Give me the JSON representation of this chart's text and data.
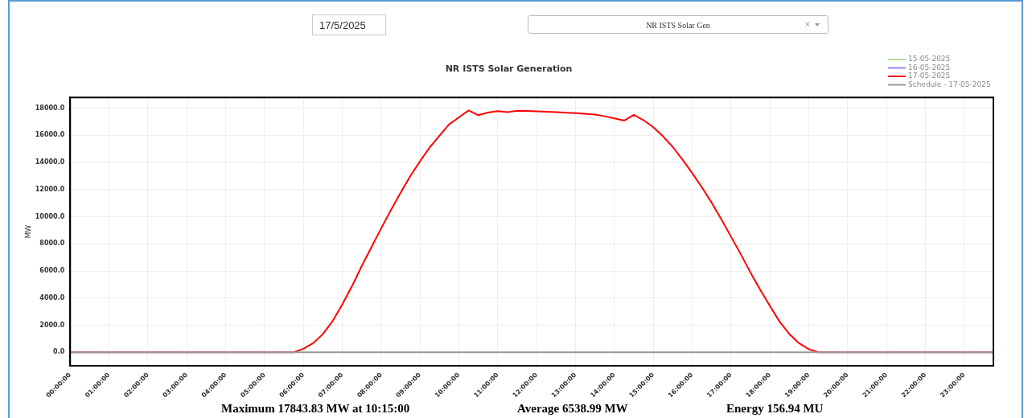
{
  "chart_data": {
    "type": "line",
    "title": "NR ISTS Solar Generation",
    "ylabel": "MW",
    "annotations": [
      "17/5/2025",
      "NR ISTS Solar Gen",
      "Maximum 17843.83 MW at 10:15:00",
      "Average 6538.99 MW",
      "Energy 156.94 MU"
    ],
    "xlim": [
      0,
      23.75
    ],
    "ylim": [
      -1000,
      18800
    ],
    "xticks": [
      {
        "value": 0,
        "label": "00:00:00"
      },
      {
        "value": 1,
        "label": "01:00:00"
      },
      {
        "value": 2,
        "label": "02:00:00"
      },
      {
        "value": 3,
        "label": "03:00:00"
      },
      {
        "value": 4,
        "label": "04:00:00"
      },
      {
        "value": 5,
        "label": "05:00:00"
      },
      {
        "value": 6,
        "label": "06:00:00"
      },
      {
        "value": 7,
        "label": "07:00:00"
      },
      {
        "value": 8,
        "label": "08:00:00"
      },
      {
        "value": 9,
        "label": "09:00:00"
      },
      {
        "value": 10,
        "label": "10:00:00"
      },
      {
        "value": 11,
        "label": "11:00:00"
      },
      {
        "value": 12,
        "label": "12:00:00"
      },
      {
        "value": 13,
        "label": "13:00:00"
      },
      {
        "value": 14,
        "label": "14:00:00"
      },
      {
        "value": 15,
        "label": "15:00:00"
      },
      {
        "value": 16,
        "label": "16:00:00"
      },
      {
        "value": 17,
        "label": "17:00:00"
      },
      {
        "value": 18,
        "label": "18:00:00"
      },
      {
        "value": 19,
        "label": "19:00:00"
      },
      {
        "value": 20,
        "label": "20:00:00"
      },
      {
        "value": 21,
        "label": "21:00:00"
      },
      {
        "value": 22,
        "label": "22:00:00"
      },
      {
        "value": 23,
        "label": "23:00:00"
      }
    ],
    "yticks": [
      {
        "value": 0,
        "label": "0.0"
      },
      {
        "value": 2000,
        "label": "2000.0"
      },
      {
        "value": 4000,
        "label": "4000.0"
      },
      {
        "value": 6000,
        "label": "6000.0"
      },
      {
        "value": 8000,
        "label": "8000.0"
      },
      {
        "value": 10000,
        "label": "10000.0"
      },
      {
        "value": 12000,
        "label": "12000.0"
      },
      {
        "value": 14000,
        "label": "14000.0"
      },
      {
        "value": 16000,
        "label": "16000.0"
      },
      {
        "value": 18000,
        "label": "18000.0"
      }
    ],
    "grid": true,
    "legend": "top right",
    "marker": "none",
    "line_style": "solid",
    "series": [
      {
        "name": "15-05-2025",
        "color": "#b5d99c"
      },
      {
        "name": "16-05-2025",
        "color": "#8888ff"
      },
      {
        "name": "17-05-2025",
        "color": "#ff0000",
        "x": [
          0,
          5.75,
          6,
          6.25,
          6.5,
          6.75,
          7,
          7.25,
          7.5,
          7.75,
          8,
          8.25,
          8.5,
          8.75,
          9,
          9.25,
          9.5,
          9.75,
          10,
          10.25,
          10.5,
          10.75,
          11,
          11.25,
          11.5,
          11.75,
          12,
          12.5,
          13,
          13.5,
          13.75,
          14,
          14.25,
          14.5,
          14.75,
          15,
          15.25,
          15.5,
          15.75,
          16,
          16.25,
          16.5,
          16.75,
          17,
          17.25,
          17.5,
          17.75,
          18,
          18.25,
          18.5,
          18.75,
          19,
          19.25,
          23.75
        ],
        "values": [
          0,
          0,
          260,
          670,
          1340,
          2290,
          3530,
          4870,
          6360,
          7750,
          9140,
          10480,
          11770,
          13000,
          14090,
          15120,
          15970,
          16820,
          17330,
          17840,
          17490,
          17690,
          17790,
          17720,
          17820,
          17800,
          17770,
          17710,
          17640,
          17540,
          17410,
          17250,
          17090,
          17510,
          17120,
          16600,
          15930,
          15150,
          14220,
          13230,
          12170,
          11050,
          9810,
          8530,
          7240,
          5890,
          4620,
          3420,
          2260,
          1350,
          670,
          230,
          0,
          0
        ]
      },
      {
        "name": "Schedule - 17-05-2025",
        "color": "#999999",
        "x": [
          0,
          23.75
        ],
        "values": [
          0,
          0
        ]
      }
    ]
  }
}
